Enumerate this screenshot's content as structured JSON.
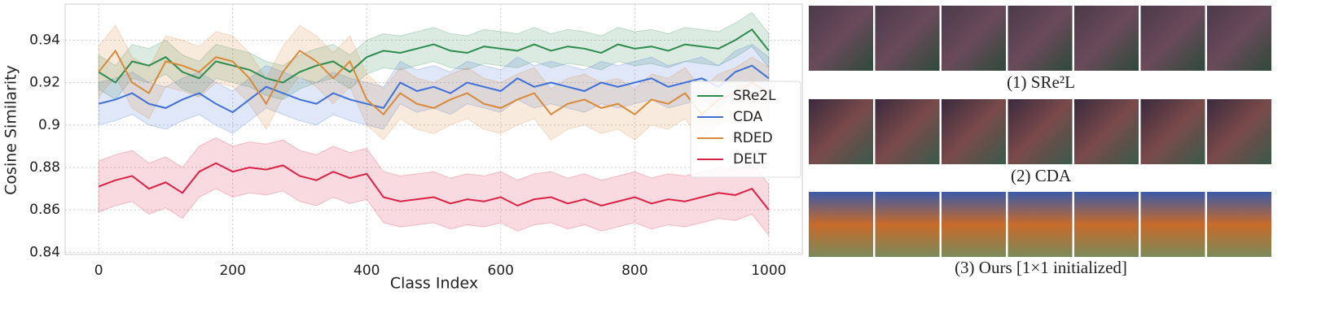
{
  "chart_data": {
    "type": "line",
    "xlabel": "Class Index",
    "ylabel": "Cosine Similarity",
    "x": [
      0,
      25,
      50,
      75,
      100,
      125,
      150,
      175,
      200,
      225,
      250,
      275,
      300,
      325,
      350,
      375,
      400,
      425,
      450,
      475,
      500,
      525,
      550,
      575,
      600,
      625,
      650,
      675,
      700,
      725,
      750,
      775,
      800,
      825,
      850,
      875,
      900,
      925,
      950,
      975,
      1000
    ],
    "series": [
      {
        "name": "SRe2L",
        "color": "#2e8b4e",
        "band": 0.008,
        "values": [
          0.925,
          0.92,
          0.93,
          0.928,
          0.932,
          0.925,
          0.922,
          0.93,
          0.928,
          0.926,
          0.922,
          0.92,
          0.925,
          0.928,
          0.93,
          0.925,
          0.932,
          0.935,
          0.934,
          0.936,
          0.938,
          0.935,
          0.934,
          0.937,
          0.936,
          0.935,
          0.938,
          0.935,
          0.937,
          0.936,
          0.934,
          0.938,
          0.936,
          0.937,
          0.935,
          0.938,
          0.937,
          0.936,
          0.94,
          0.945,
          0.935
        ]
      },
      {
        "name": "CDA",
        "color": "#3f6fd8",
        "band": 0.01,
        "values": [
          0.91,
          0.912,
          0.915,
          0.91,
          0.908,
          0.912,
          0.915,
          0.91,
          0.906,
          0.912,
          0.918,
          0.915,
          0.912,
          0.91,
          0.915,
          0.912,
          0.91,
          0.908,
          0.92,
          0.916,
          0.918,
          0.915,
          0.92,
          0.918,
          0.916,
          0.922,
          0.918,
          0.92,
          0.918,
          0.916,
          0.92,
          0.918,
          0.92,
          0.922,
          0.918,
          0.92,
          0.922,
          0.918,
          0.925,
          0.928,
          0.922
        ]
      },
      {
        "name": "RDED",
        "color": "#d8893a",
        "band": 0.012,
        "values": [
          0.925,
          0.935,
          0.92,
          0.915,
          0.93,
          0.928,
          0.925,
          0.932,
          0.93,
          0.922,
          0.91,
          0.925,
          0.935,
          0.93,
          0.922,
          0.93,
          0.912,
          0.905,
          0.915,
          0.91,
          0.908,
          0.912,
          0.915,
          0.91,
          0.908,
          0.912,
          0.915,
          0.905,
          0.91,
          0.912,
          0.908,
          0.91,
          0.905,
          0.912,
          0.91,
          0.915,
          0.905,
          0.912,
          0.915,
          0.92,
          0.915
        ]
      },
      {
        "name": "DELT",
        "color": "#dc2146",
        "band": 0.012,
        "values": [
          0.871,
          0.874,
          0.876,
          0.87,
          0.873,
          0.868,
          0.878,
          0.882,
          0.878,
          0.88,
          0.879,
          0.881,
          0.876,
          0.874,
          0.878,
          0.875,
          0.877,
          0.866,
          0.864,
          0.865,
          0.866,
          0.863,
          0.865,
          0.864,
          0.866,
          0.862,
          0.865,
          0.866,
          0.863,
          0.865,
          0.862,
          0.864,
          0.866,
          0.863,
          0.865,
          0.864,
          0.866,
          0.868,
          0.867,
          0.87,
          0.86
        ]
      }
    ],
    "xlim": [
      -50,
      1050
    ],
    "xticks": [
      0,
      200,
      400,
      600,
      800,
      1000
    ],
    "ylim": [
      0.839,
      0.957
    ],
    "yticks": [
      0.84,
      0.86,
      0.88,
      0.9,
      0.92,
      0.94
    ],
    "grid": true,
    "legend": "center right"
  },
  "panels": [
    {
      "caption": "(1) SRe²L"
    },
    {
      "caption": "(2) CDA"
    },
    {
      "caption": "(3) Ours [1×1 initialized]"
    }
  ]
}
